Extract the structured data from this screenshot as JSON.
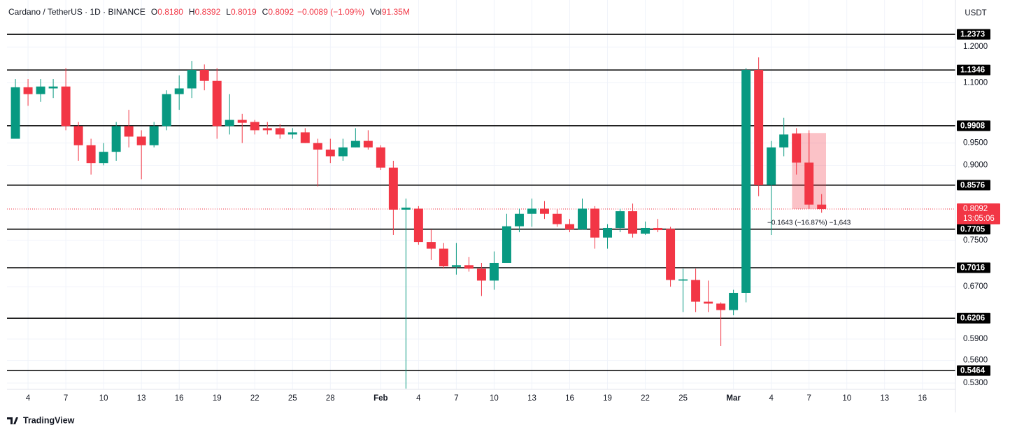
{
  "chart_data": {
    "type": "candlestick",
    "header": {
      "symbol": "Cardano / TetherUS · 1D · BINANCE",
      "ohlc": [
        {
          "label": "O",
          "value": "0.8180"
        },
        {
          "label": "H",
          "value": "0.8392"
        },
        {
          "label": "L",
          "value": "0.8019"
        },
        {
          "label": "C",
          "value": "0.8092"
        }
      ],
      "change": "−0.0089 (−1.09%)",
      "vol_label": "Vol",
      "vol": "91.35M"
    },
    "currency": "USDT",
    "brand": "TradingView",
    "log_scale": true,
    "grid": true,
    "up_color": "#089981",
    "down_color": "#f23645",
    "xlim": [
      -0.67,
      74.4
    ],
    "xticks": [
      {
        "value": 1,
        "label": "4"
      },
      {
        "value": 4,
        "label": "7"
      },
      {
        "value": 7,
        "label": "10"
      },
      {
        "value": 10,
        "label": "13"
      },
      {
        "value": 13,
        "label": "16"
      },
      {
        "value": 16,
        "label": "19"
      },
      {
        "value": 19,
        "label": "22"
      },
      {
        "value": 22,
        "label": "25"
      },
      {
        "value": 25,
        "label": "28"
      },
      {
        "value": 29,
        "label": "Feb"
      },
      {
        "value": 32,
        "label": "4"
      },
      {
        "value": 35,
        "label": "7"
      },
      {
        "value": 38,
        "label": "10"
      },
      {
        "value": 41,
        "label": "13"
      },
      {
        "value": 44,
        "label": "16"
      },
      {
        "value": 47,
        "label": "19"
      },
      {
        "value": 50,
        "label": "22"
      },
      {
        "value": 53,
        "label": "25"
      },
      {
        "value": 57,
        "label": "Mar"
      },
      {
        "value": 60,
        "label": "4"
      },
      {
        "value": 63,
        "label": "7"
      },
      {
        "value": 66,
        "label": "10"
      },
      {
        "value": 69,
        "label": "13"
      },
      {
        "value": 72,
        "label": "16"
      }
    ],
    "ylim": [
      0.522,
      1.327
    ],
    "yticks": [
      {
        "value": 1.2,
        "label": "1.2000"
      },
      {
        "value": 1.1,
        "label": "1.1000"
      },
      {
        "value": 0.95,
        "label": "0.9500"
      },
      {
        "value": 0.9,
        "label": "0.9000"
      },
      {
        "value": 0.75,
        "label": "0.7500"
      },
      {
        "value": 0.67,
        "label": "0.6700"
      },
      {
        "value": 0.59,
        "label": "0.5900"
      },
      {
        "value": 0.56,
        "label": "0.5600"
      },
      {
        "value": 0.53,
        "label": "0.5300"
      }
    ],
    "levels": [
      1.2373,
      1.1346,
      0.9908,
      0.8576,
      0.7705,
      0.7016,
      0.6206,
      0.5464
    ],
    "last_price": {
      "value": 0.8092,
      "countdown": "13:05:06"
    },
    "measure": {
      "from_index": 62,
      "to_index": 64,
      "from": 0.9735,
      "to": 0.8092,
      "label": "−0.1643 (−16.87%) −1,643"
    },
    "candles": [
      {
        "o": 0.96,
        "h": 1.11,
        "l": 0.96,
        "c": 1.088
      },
      {
        "o": 1.088,
        "h": 1.11,
        "l": 1.04,
        "c": 1.07
      },
      {
        "o": 1.07,
        "h": 1.11,
        "l": 1.05,
        "c": 1.09
      },
      {
        "o": 1.085,
        "h": 1.11,
        "l": 1.06,
        "c": 1.09
      },
      {
        "o": 1.09,
        "h": 1.14,
        "l": 0.98,
        "c": 0.99
      },
      {
        "o": 0.99,
        "h": 1.0,
        "l": 0.91,
        "c": 0.945
      },
      {
        "o": 0.945,
        "h": 0.96,
        "l": 0.88,
        "c": 0.905
      },
      {
        "o": 0.905,
        "h": 0.95,
        "l": 0.9,
        "c": 0.93
      },
      {
        "o": 0.93,
        "h": 1.0,
        "l": 0.91,
        "c": 0.99
      },
      {
        "o": 0.99,
        "h": 1.03,
        "l": 0.94,
        "c": 0.965
      },
      {
        "o": 0.965,
        "h": 0.98,
        "l": 0.87,
        "c": 0.945
      },
      {
        "o": 0.945,
        "h": 1.0,
        "l": 0.94,
        "c": 0.99
      },
      {
        "o": 0.99,
        "h": 1.08,
        "l": 0.98,
        "c": 1.07
      },
      {
        "o": 1.07,
        "h": 1.12,
        "l": 1.03,
        "c": 1.085
      },
      {
        "o": 1.085,
        "h": 1.16,
        "l": 1.06,
        "c": 1.135
      },
      {
        "o": 1.135,
        "h": 1.15,
        "l": 1.08,
        "c": 1.105
      },
      {
        "o": 1.105,
        "h": 1.14,
        "l": 0.96,
        "c": 0.99
      },
      {
        "o": 0.99,
        "h": 1.07,
        "l": 0.97,
        "c": 1.005
      },
      {
        "o": 1.005,
        "h": 1.02,
        "l": 0.95,
        "c": 0.998
      },
      {
        "o": 1.0,
        "h": 1.005,
        "l": 0.97,
        "c": 0.98
      },
      {
        "o": 0.985,
        "h": 1.0,
        "l": 0.97,
        "c": 0.98
      },
      {
        "o": 0.985,
        "h": 0.995,
        "l": 0.96,
        "c": 0.97
      },
      {
        "o": 0.97,
        "h": 0.985,
        "l": 0.96,
        "c": 0.975
      },
      {
        "o": 0.975,
        "h": 0.985,
        "l": 0.95,
        "c": 0.95
      },
      {
        "o": 0.95,
        "h": 0.96,
        "l": 0.855,
        "c": 0.935
      },
      {
        "o": 0.935,
        "h": 0.96,
        "l": 0.905,
        "c": 0.92
      },
      {
        "o": 0.92,
        "h": 0.96,
        "l": 0.91,
        "c": 0.94
      },
      {
        "o": 0.94,
        "h": 0.985,
        "l": 0.94,
        "c": 0.955
      },
      {
        "o": 0.955,
        "h": 0.98,
        "l": 0.935,
        "c": 0.94
      },
      {
        "o": 0.94,
        "h": 0.945,
        "l": 0.89,
        "c": 0.895
      },
      {
        "o": 0.895,
        "h": 0.91,
        "l": 0.76,
        "c": 0.808
      },
      {
        "o": 0.808,
        "h": 0.83,
        "l": 0.523,
        "c": 0.812
      },
      {
        "o": 0.81,
        "h": 0.815,
        "l": 0.742,
        "c": 0.747
      },
      {
        "o": 0.747,
        "h": 0.77,
        "l": 0.715,
        "c": 0.735
      },
      {
        "o": 0.735,
        "h": 0.745,
        "l": 0.7,
        "c": 0.704
      },
      {
        "o": 0.703,
        "h": 0.745,
        "l": 0.69,
        "c": 0.706
      },
      {
        "o": 0.706,
        "h": 0.72,
        "l": 0.695,
        "c": 0.7
      },
      {
        "o": 0.7,
        "h": 0.71,
        "l": 0.655,
        "c": 0.68
      },
      {
        "o": 0.68,
        "h": 0.73,
        "l": 0.665,
        "c": 0.71
      },
      {
        "o": 0.71,
        "h": 0.8,
        "l": 0.71,
        "c": 0.776
      },
      {
        "o": 0.776,
        "h": 0.81,
        "l": 0.765,
        "c": 0.8
      },
      {
        "o": 0.8,
        "h": 0.83,
        "l": 0.775,
        "c": 0.81
      },
      {
        "o": 0.81,
        "h": 0.825,
        "l": 0.79,
        "c": 0.8
      },
      {
        "o": 0.8,
        "h": 0.81,
        "l": 0.775,
        "c": 0.78
      },
      {
        "o": 0.78,
        "h": 0.79,
        "l": 0.765,
        "c": 0.77
      },
      {
        "o": 0.77,
        "h": 0.83,
        "l": 0.77,
        "c": 0.81
      },
      {
        "o": 0.81,
        "h": 0.815,
        "l": 0.735,
        "c": 0.755
      },
      {
        "o": 0.755,
        "h": 0.78,
        "l": 0.735,
        "c": 0.773
      },
      {
        "o": 0.773,
        "h": 0.81,
        "l": 0.765,
        "c": 0.805
      },
      {
        "o": 0.805,
        "h": 0.82,
        "l": 0.755,
        "c": 0.762
      },
      {
        "o": 0.762,
        "h": 0.785,
        "l": 0.76,
        "c": 0.773
      },
      {
        "o": 0.773,
        "h": 0.79,
        "l": 0.765,
        "c": 0.769
      },
      {
        "o": 0.771,
        "h": 0.775,
        "l": 0.67,
        "c": 0.681
      },
      {
        "o": 0.68,
        "h": 0.7,
        "l": 0.63,
        "c": 0.682
      },
      {
        "o": 0.681,
        "h": 0.7,
        "l": 0.63,
        "c": 0.646
      },
      {
        "o": 0.646,
        "h": 0.68,
        "l": 0.63,
        "c": 0.643
      },
      {
        "o": 0.643,
        "h": 0.645,
        "l": 0.58,
        "c": 0.633
      },
      {
        "o": 0.633,
        "h": 0.665,
        "l": 0.625,
        "c": 0.66
      },
      {
        "o": 0.66,
        "h": 1.14,
        "l": 0.645,
        "c": 1.135
      },
      {
        "o": 1.135,
        "h": 1.17,
        "l": 0.835,
        "c": 0.8576
      },
      {
        "o": 0.858,
        "h": 0.955,
        "l": 0.76,
        "c": 0.94
      },
      {
        "o": 0.94,
        "h": 1.01,
        "l": 0.92,
        "c": 0.97
      },
      {
        "o": 0.972,
        "h": 0.985,
        "l": 0.88,
        "c": 0.906
      },
      {
        "o": 0.906,
        "h": 0.98,
        "l": 0.81,
        "c": 0.818
      },
      {
        "o": 0.818,
        "h": 0.8392,
        "l": 0.8019,
        "c": 0.8092
      }
    ]
  }
}
